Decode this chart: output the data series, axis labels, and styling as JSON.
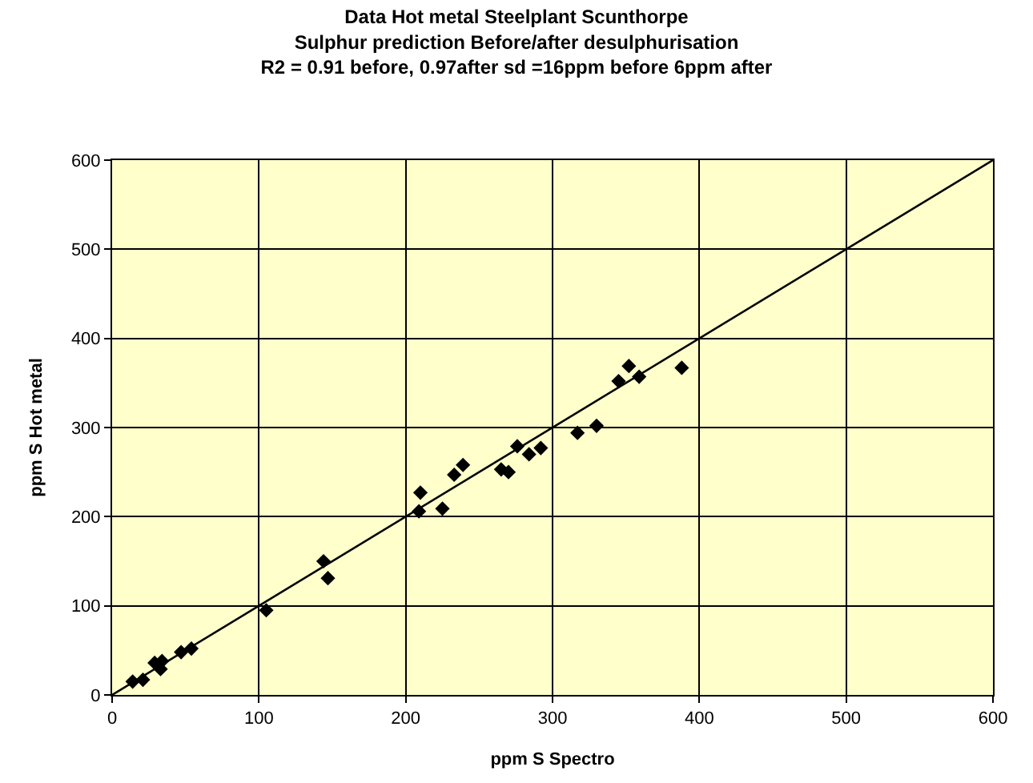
{
  "chart_data": {
    "type": "scatter",
    "title": "Data Hot metal Steelplant Scunthorpe\nSulphur prediction Before/after desulphurisation\nR2 = 0.91 before, 0.97after sd =16ppm before 6ppm after",
    "xlabel": "ppm S Spectro",
    "ylabel": "ppm S Hot metal",
    "xlim": [
      0,
      600
    ],
    "xticks": [
      0,
      100,
      200,
      300,
      400,
      500,
      600
    ],
    "ylim": [
      0,
      600
    ],
    "yticks": [
      0,
      100,
      200,
      300,
      400,
      500,
      600
    ],
    "grid": true,
    "marker": "diamond",
    "series": [
      {
        "color": "#000000",
        "x": [
          14,
          21,
          29,
          34,
          33,
          47,
          54,
          105,
          144,
          147,
          210,
          209,
          225,
          233,
          239,
          265,
          270,
          276,
          284,
          292,
          317,
          330,
          345,
          352,
          359,
          388
        ],
        "values": [
          15,
          17,
          36,
          38,
          29,
          48,
          52,
          95,
          150,
          131,
          227,
          206,
          209,
          247,
          258,
          253,
          250,
          279,
          270,
          277,
          294,
          302,
          352,
          369,
          357,
          367
        ]
      },
      {
        "type": "line",
        "color": "#000000",
        "x": [
          0,
          600
        ],
        "values": [
          0,
          600
        ],
        "marker": "none",
        "line_style": "solid"
      }
    ]
  }
}
